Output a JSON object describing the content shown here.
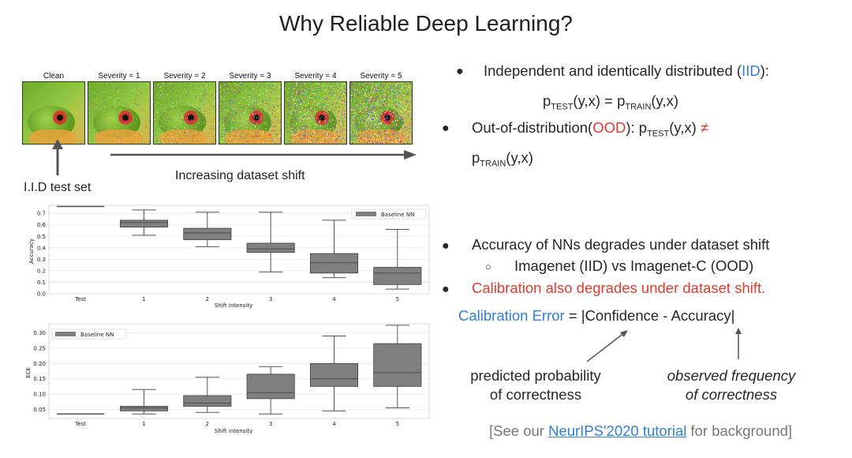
{
  "slide": {
    "title": "Why Reliable Deep Learning?"
  },
  "image_strip": {
    "labels": [
      "Clean",
      "Severity = 1",
      "Severity = 2",
      "Severity = 3",
      "Severity = 4",
      "Severity = 5"
    ],
    "iid_caption": "I.I.D test set",
    "shift_caption": "Increasing dataset shift"
  },
  "bullets": {
    "iid_prefix": "Independent and identically distributed (",
    "iid_word": "IID",
    "iid_suffix": "):",
    "formula_p1": "p",
    "formula_test": "TEST",
    "formula_mid": "(y,x) = p",
    "formula_train": "TRAIN",
    "formula_end": "(y,x)",
    "ood_prefix": "Out-of-distribution(",
    "ood_word": "OOD",
    "ood_mid": "): p",
    "ood_test": "TEST",
    "ood_args": "(y,x) ",
    "ood_neq": "≠",
    "ood_p": "p",
    "ood_train": "TRAIN",
    "ood_end": "(y,x)",
    "acc_degrades": "Accuracy of NNs degrades under dataset shift",
    "imagenet": "Imagenet (IID) vs Imagenet-C (OOD)",
    "calib_degrades": "Calibration also degrades under dataset shift.",
    "calib_error_label": "Calibration Error",
    "calib_error_eq": " = |Confidence  -  Accuracy|",
    "pred_prob_line1": "predicted probability",
    "pred_prob_line2": "of correctness",
    "obs_freq_line1": "observed frequency",
    "obs_freq_line2": "of correctness",
    "footer_prefix": "[See our ",
    "footer_link": "NeurIPS'2020 tutorial",
    "footer_suffix": " for background]"
  },
  "colors": {
    "blue": "#2f7fd6",
    "red": "#e53a2e",
    "box_fill": "#808080",
    "box_edge": "#3d3d3d"
  },
  "chart_data": [
    {
      "type": "box",
      "title": "",
      "xlabel": "Shift intensity",
      "ylabel": "Accuracy",
      "categories": [
        "Test",
        "1",
        "2",
        "3",
        "4",
        "5"
      ],
      "ylim": [
        0.0,
        0.77
      ],
      "yticks": [
        "0.0",
        "0.1",
        "0.2",
        "0.3",
        "0.4",
        "0.5",
        "0.6",
        "0.7"
      ],
      "grid": true,
      "legend": {
        "position": "top-right",
        "entries": [
          "Baseline NN"
        ]
      },
      "series": [
        {
          "name": "Baseline NN",
          "boxes": [
            {
              "min": 0.76,
              "q1": 0.76,
              "median": 0.76,
              "q3": 0.76,
              "max": 0.76
            },
            {
              "min": 0.51,
              "q1": 0.58,
              "median": 0.62,
              "q3": 0.64,
              "max": 0.73
            },
            {
              "min": 0.41,
              "q1": 0.47,
              "median": 0.53,
              "q3": 0.57,
              "max": 0.71
            },
            {
              "min": 0.19,
              "q1": 0.36,
              "median": 0.39,
              "q3": 0.44,
              "max": 0.71
            },
            {
              "min": 0.14,
              "q1": 0.18,
              "median": 0.27,
              "q3": 0.35,
              "max": 0.64
            },
            {
              "min": 0.04,
              "q1": 0.08,
              "median": 0.18,
              "q3": 0.23,
              "max": 0.56
            }
          ]
        }
      ]
    },
    {
      "type": "box",
      "title": "",
      "xlabel": "Shift intensity",
      "ylabel": "ECE",
      "categories": [
        "Test",
        "1",
        "2",
        "3",
        "4",
        "5"
      ],
      "ylim": [
        0.02,
        0.33
      ],
      "yticks": [
        "0.05",
        "0.10",
        "0.15",
        "0.20",
        "0.25",
        "0.30"
      ],
      "grid": true,
      "legend": {
        "position": "top-left",
        "entries": [
          "Baseline NN"
        ]
      },
      "series": [
        {
          "name": "Baseline NN",
          "boxes": [
            {
              "min": 0.035,
              "q1": 0.035,
              "median": 0.035,
              "q3": 0.035,
              "max": 0.035
            },
            {
              "min": 0.035,
              "q1": 0.045,
              "median": 0.055,
              "q3": 0.06,
              "max": 0.115
            },
            {
              "min": 0.04,
              "q1": 0.06,
              "median": 0.07,
              "q3": 0.095,
              "max": 0.155
            },
            {
              "min": 0.035,
              "q1": 0.085,
              "median": 0.105,
              "q3": 0.165,
              "max": 0.19
            },
            {
              "min": 0.045,
              "q1": 0.125,
              "median": 0.15,
              "q3": 0.2,
              "max": 0.29
            },
            {
              "min": 0.055,
              "q1": 0.125,
              "median": 0.17,
              "q3": 0.265,
              "max": 0.325
            }
          ]
        }
      ]
    }
  ]
}
